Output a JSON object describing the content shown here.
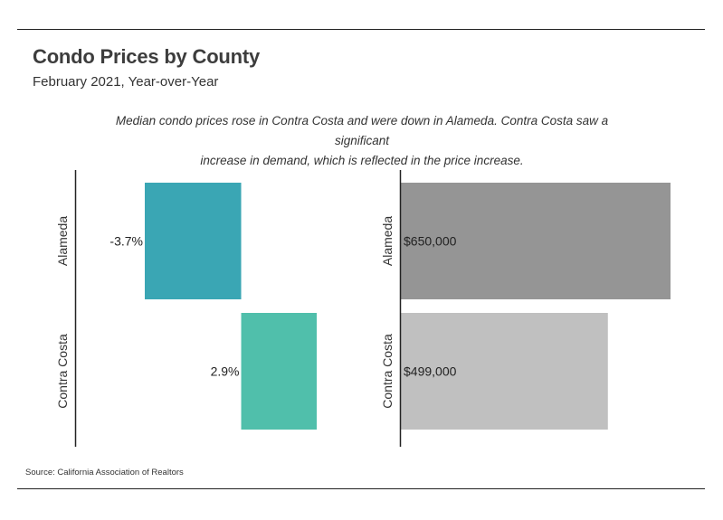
{
  "title": "Condo Prices by County",
  "subtitle": "February 2021, Year-over-Year",
  "note": {
    "line1": "Median condo prices rose in Contra Costa and were down in Alameda. Contra Costa saw a significant",
    "line2": "increase in demand, which is reflected in the price increase."
  },
  "source": "Source:  California Association of Realtors",
  "chart_data": [
    {
      "type": "bar",
      "orientation": "horizontal",
      "categories": [
        "Alameda",
        "Contra Costa"
      ],
      "values": [
        -3.7,
        2.9
      ],
      "value_labels": [
        "-3.7%",
        "2.9%"
      ],
      "colors": [
        "#3aa6b4",
        "#50bfab"
      ],
      "xlim": [
        -3.7,
        2.9
      ]
    },
    {
      "type": "bar",
      "orientation": "horizontal",
      "categories": [
        "Alameda",
        "Contra Costa"
      ],
      "values": [
        650000,
        499000
      ],
      "value_labels": [
        "$650,000",
        "$499,000"
      ],
      "colors": [
        "#959595",
        "#c0c0c0"
      ],
      "xlim": [
        0,
        650000
      ]
    }
  ]
}
